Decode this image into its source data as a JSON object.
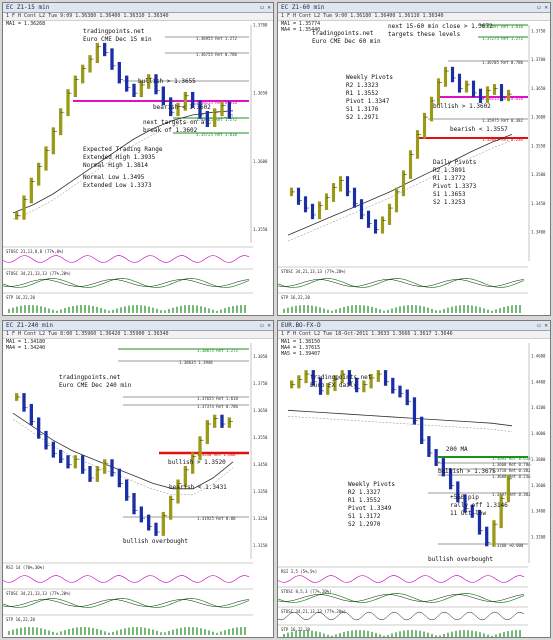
{
  "colors": {
    "accent_magenta": "#e010c8",
    "support_red": "#e01010",
    "target_green": "#1f8f1f",
    "bar_olive": "#9a9a18",
    "bar_blue": "#1a2ea8",
    "ma_dark": "#303030",
    "stoch_green": "#1a8a1a",
    "stoch_black": "#111111",
    "rsi_purple": "#c000c0"
  },
  "panels": [
    {
      "id": "p1",
      "title": "EC Z1-15 min",
      "toolbar": "1 F H Cont  L2  Tue  9:09  1.36380  1.36400  1.36310  1.36340",
      "ma_lines": [
        "MA1 = 1.36268"
      ],
      "annotations": [
        {
          "text": "tradingpoints.net"
        },
        {
          "text": "Euro CME Dec 15 min"
        },
        {
          "text": "bullish > 1.3655"
        },
        {
          "text": "bearish < 1.3602"
        },
        {
          "text": "next targets on a"
        },
        {
          "text": "break of 1.3602"
        },
        {
          "text": "Expected Trading Range"
        },
        {
          "text": "Extended High   1.3935"
        },
        {
          "text": "Normal High     1.3814"
        },
        {
          "text": "Normal Low      1.3495"
        },
        {
          "text": "Extended Low    1.3373"
        }
      ],
      "price_labels": [
        "1.36955 Ret 1.272",
        "1.36755 Ret 0.786",
        "1.36215 Ret 0.618",
        "1.35955 Ret 1.272",
        "1.35725 Ret 1.618"
      ],
      "indicators": [
        "STOSC 21,13,8,8 (77%,0%)",
        "STOSC 34,21,13,13 (77%,20%)",
        "STP 16,22,20"
      ]
    },
    {
      "id": "p2",
      "title": "EC Z1-60 min",
      "toolbar": "1 F H Cont  L2  Tue  9:00  1.36180  1.36400  1.36110  1.36340",
      "ma_lines": [
        "MA1 = 1.35774",
        "MA4 = 1.35440"
      ],
      "annotations": [
        {
          "text": "tradingpoints.net"
        },
        {
          "text": "Euro CME Dec 60 min"
        },
        {
          "text": "next 15-60 min close > 1.3672"
        },
        {
          "text": "targets these levels"
        },
        {
          "text": "Weekly Pivots"
        },
        {
          "text": "R2      1.3323"
        },
        {
          "text": "R1      1.3552"
        },
        {
          "text": "Pivot   1.3347"
        },
        {
          "text": "S1      1.3176"
        },
        {
          "text": "S2      1.2971"
        },
        {
          "text": "bullish > 1.3602"
        },
        {
          "text": "bearish < 1.3557"
        },
        {
          "text": "Daily Pivots"
        },
        {
          "text": "R2      1.3891"
        },
        {
          "text": "R1      1.3772"
        },
        {
          "text": "Pivot   1.3373"
        },
        {
          "text": "S1      1.3653"
        },
        {
          "text": "S2      1.3253"
        }
      ],
      "price_labels": [
        "1.37497 Ret 1.618",
        "1.37275 Ret 1.272",
        "1.36705 Ret 0.786",
        "1.36215 Ret 0.618",
        "1.35975 Ret 0.382",
        "1.35645 Ret 0.236"
      ],
      "indicators": [
        "STOSC 34,21,13,13 (77%,20%)",
        "STP 16,22,20"
      ]
    },
    {
      "id": "p3",
      "title": "EC Z1-240 min",
      "toolbar": "1 F H Cont  L2  Tue  8:00  1.35960  1.36420  1.35900  1.36340",
      "ma_lines": [
        "MA1 = 1.34180",
        "MA4 = 1.34240"
      ],
      "annotations": [
        {
          "text": "tradingpoints.net"
        },
        {
          "text": "Euro CME Dec 240 min"
        },
        {
          "text": "bullish > 1.3520"
        },
        {
          "text": "bearish < 1.3431"
        },
        {
          "text": "bullish overbought"
        }
      ],
      "price_labels": [
        "1.38675 Ret 1.272",
        "1.38635 1.3948",
        "1.37655 Ret 1.618",
        "1.37374 Ret 0.786",
        "1.3530 Ret 1.000",
        "1.31925 Ret 0.00"
      ],
      "indicators": [
        "RSI 14 (70%,30%)",
        "STOSC 34,21,13,13 (77%,20%)",
        "STP 16,22,20"
      ]
    },
    {
      "id": "p4",
      "title": "EUR.BO-FX-D",
      "toolbar": "1 F H Cont  L2  Tue 18-Oct-2011  1.3633  1.3666  1.3617  1.3646",
      "ma_lines": [
        "MA1 = 1.38150",
        "MA4 = 1.37615",
        "MA5 = 1.39407"
      ],
      "annotations": [
        {
          "text": "tradingpoints.net"
        },
        {
          "text": "Euro FX daily"
        },
        {
          "text": "200 MA"
        },
        {
          "text": "bullish > 1.3675"
        },
        {
          "text": "Weekly Pivots"
        },
        {
          "text": "R2      1.3327"
        },
        {
          "text": "R1      1.3552"
        },
        {
          "text": "Pivot   1.3349"
        },
        {
          "text": "S1      1.3172"
        },
        {
          "text": "S2      1.2970"
        },
        {
          "text": "+550 pip"
        },
        {
          "text": "rally off 1.3146"
        },
        {
          "text": "11 Oct low"
        },
        {
          "text": "bullish overbought"
        }
      ],
      "price_labels": [
        "1.3693 Ret 0.618",
        "1.3668 Ret 0.786",
        "1.3718 Ret 0.382",
        "1.3688 Ret 0.236",
        "1.3497 Ret 0.382",
        "1.3168 +0.000"
      ],
      "indicators": [
        "RSI 3,5 (5%,5%)",
        "STOSC 8,5,3 (77%,20%)",
        "STOSC 34,21,13,13 (77%,20%)",
        "STP 16,22,20"
      ]
    }
  ],
  "chart_data": [
    {
      "type": "bar",
      "title": "Euro CME Dec 15 min",
      "ylim": [
        1.354,
        1.37
      ],
      "ticks": [
        "1.3700",
        "1.3650",
        "1.3600",
        "1.3550"
      ],
      "series": [
        {
          "values": [
            1.356,
            1.3572,
            1.3585,
            1.3596,
            1.3608,
            1.3622,
            1.3636,
            1.365,
            1.366,
            1.3668,
            1.3675,
            1.3684,
            1.368,
            1.367,
            1.366,
            1.3654,
            1.365,
            1.3656,
            1.3661,
            1.3652,
            1.3644,
            1.3636,
            1.364,
            1.3648,
            1.3642,
            1.3634,
            1.3628,
            1.3636,
            1.3641,
            1.3634
          ]
        }
      ],
      "ma": [
        1.3562,
        1.3568,
        1.3576,
        1.3586,
        1.3596,
        1.3606,
        1.3616,
        1.3624,
        1.363,
        1.3634,
        1.3636,
        1.3637
      ]
    },
    {
      "type": "bar",
      "title": "Euro CME Dec 60 min",
      "ylim": [
        1.335,
        1.376
      ],
      "ticks": [
        "1.3750",
        "1.3700",
        "1.3650",
        "1.3600",
        "1.3550",
        "1.3500",
        "1.3450",
        "1.3400"
      ],
      "series": [
        {
          "values": [
            1.347,
            1.3455,
            1.3442,
            1.343,
            1.3446,
            1.346,
            1.3478,
            1.349,
            1.347,
            1.345,
            1.343,
            1.3415,
            1.3405,
            1.342,
            1.3442,
            1.347,
            1.35,
            1.3535,
            1.357,
            1.36,
            1.3628,
            1.366,
            1.368,
            1.3668,
            1.365,
            1.3656,
            1.3642,
            1.3632,
            1.3646,
            1.365,
            1.3635,
            1.364
          ]
        }
      ],
      "ma": [
        1.3395,
        1.341,
        1.3425,
        1.344,
        1.3455,
        1.347,
        1.3488,
        1.3505,
        1.3522,
        1.354,
        1.3556,
        1.357
      ]
    },
    {
      "type": "bar",
      "title": "Euro CME Dec 240 min",
      "ylim": [
        1.31,
        1.39
      ],
      "ticks": [
        "1.3850",
        "1.3750",
        "1.3650",
        "1.3550",
        "1.3450",
        "1.3350",
        "1.3250",
        "1.3150"
      ],
      "series": [
        {
          "values": [
            1.37,
            1.366,
            1.361,
            1.356,
            1.352,
            1.349,
            1.347,
            1.345,
            1.347,
            1.343,
            1.34,
            1.343,
            1.3455,
            1.342,
            1.338,
            1.333,
            1.328,
            1.325,
            1.322,
            1.32,
            1.326,
            1.332,
            1.338,
            1.343,
            1.348,
            1.354,
            1.36,
            1.362,
            1.36,
            1.361
          ]
        }
      ],
      "ma": [
        1.364,
        1.359,
        1.354,
        1.35,
        1.347,
        1.344,
        1.341,
        1.338,
        1.336,
        1.336,
        1.34,
        1.346
      ]
    },
    {
      "type": "bar",
      "title": "Euro FX daily",
      "ylim": [
        1.3,
        1.47
      ],
      "ticks": [
        "1.4600",
        "1.4400",
        "1.4200",
        "1.4000",
        "1.3800",
        "1.3600",
        "1.3400",
        "1.3200"
      ],
      "series": [
        {
          "values": [
            1.438,
            1.442,
            1.446,
            1.44,
            1.433,
            1.436,
            1.442,
            1.446,
            1.44,
            1.435,
            1.438,
            1.443,
            1.446,
            1.44,
            1.434,
            1.431,
            1.425,
            1.41,
            1.395,
            1.385,
            1.378,
            1.37,
            1.36,
            1.35,
            1.342,
            1.338,
            1.325,
            1.316,
            1.33,
            1.35,
            1.365
          ]
        }
      ],
      "ma": [
        1.418,
        1.417,
        1.416,
        1.415,
        1.414,
        1.413,
        1.412,
        1.411,
        1.41,
        1.409,
        1.408,
        1.406
      ]
    }
  ]
}
